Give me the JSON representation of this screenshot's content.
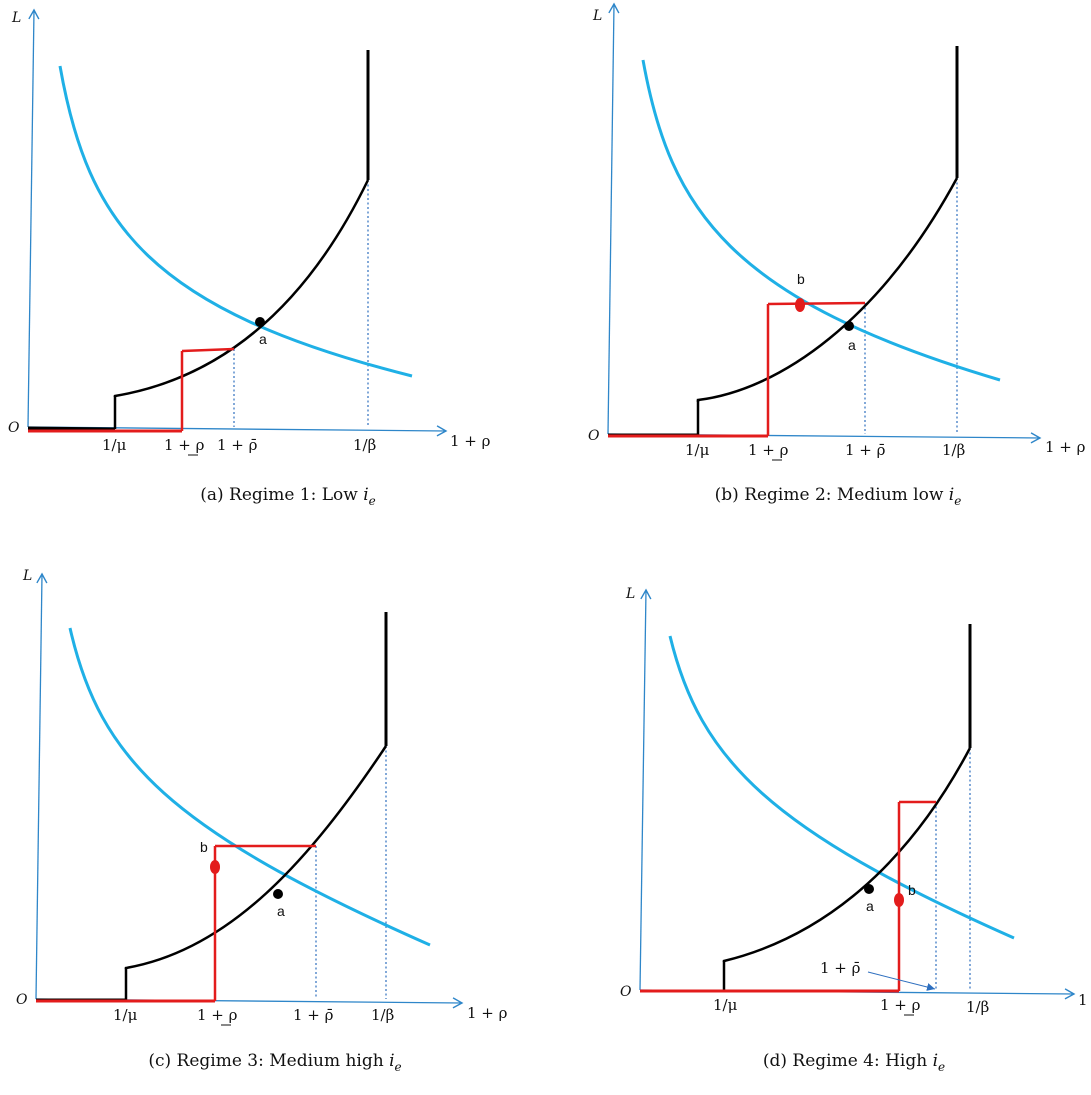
{
  "colors": {
    "axis": "#2e86c9",
    "demand": "#1fb0e6",
    "supply": "#000000",
    "red": "#e31c1c",
    "guide": "#2e6fbf"
  },
  "axes": {
    "origin": "O",
    "y_label": "L",
    "x_label": "1 + ρ"
  },
  "ticks": {
    "inv_mu": "1/μ",
    "rho_low": "1 + ρ",
    "rho_high": "1 + ρ̄",
    "inv_beta": "1/β"
  },
  "points": {
    "a": "a",
    "b": "b"
  },
  "panels": [
    {
      "id": "a",
      "caption": "(a) Regime 1: Low ",
      "caption_var": "i",
      "caption_sub": "e"
    },
    {
      "id": "b",
      "caption": "(b) Regime 2: Medium low ",
      "caption_var": "i",
      "caption_sub": "e"
    },
    {
      "id": "c",
      "caption": "(c) Regime 3: Medium high ",
      "caption_var": "i",
      "caption_sub": "e"
    },
    {
      "id": "d",
      "caption": "(d) Regime 4: High ",
      "caption_var": "i",
      "caption_sub": "e"
    }
  ]
}
